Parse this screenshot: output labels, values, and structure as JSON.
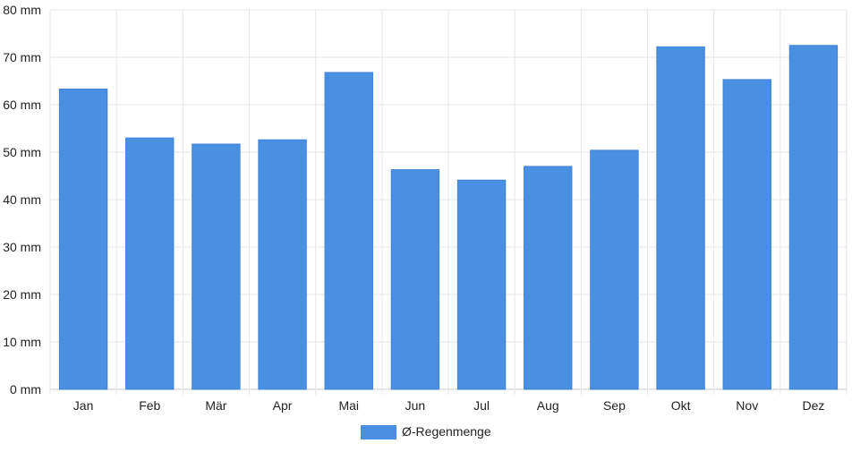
{
  "chart_data": {
    "type": "bar",
    "categories": [
      "Jan",
      "Feb",
      "Mär",
      "Apr",
      "Mai",
      "Jun",
      "Jul",
      "Aug",
      "Sep",
      "Okt",
      "Nov",
      "Dez"
    ],
    "series": [
      {
        "name": "Ø-Regenmenge",
        "values": [
          63.3,
          53.0,
          51.7,
          52.6,
          66.8,
          46.3,
          44.1,
          47.0,
          50.4,
          72.2,
          65.3,
          72.5
        ],
        "color": "#4a90e2"
      }
    ],
    "yticks": [
      "0 mm",
      "10 mm",
      "20 mm",
      "30 mm",
      "40 mm",
      "50 mm",
      "60 mm",
      "70 mm",
      "80 mm"
    ],
    "ylim": [
      0,
      80
    ],
    "grid": true,
    "legend_position": "bottom",
    "legend": {
      "label": "Ø-Regenmenge"
    }
  }
}
